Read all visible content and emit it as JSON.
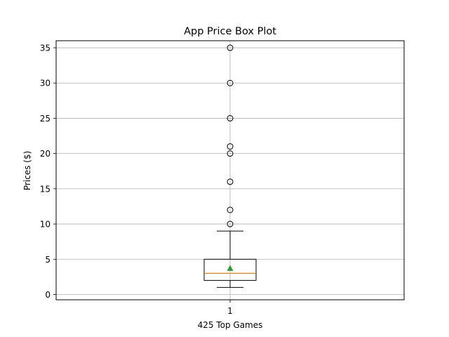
{
  "chart_data": {
    "type": "box",
    "title": "App Price Box Plot",
    "xlabel": "425 Top Games",
    "ylabel": "Prices ($)",
    "categories": [
      "1"
    ],
    "ylim": [
      -0.75,
      36.0
    ],
    "yticks": [
      "0",
      "5",
      "10",
      "15",
      "20",
      "25",
      "30",
      "35"
    ],
    "grid": true,
    "box": {
      "whisker_low": 1,
      "q1": 2,
      "median": 3,
      "q3": 5,
      "whisker_high": 9,
      "mean": 3.7
    },
    "outliers": [
      10,
      12,
      16,
      20,
      21,
      25,
      30,
      35
    ],
    "colors": {
      "median": "#ff7f0e",
      "mean": "#2ca02c",
      "grid": "#b0b0b0",
      "box": "#000000"
    }
  }
}
